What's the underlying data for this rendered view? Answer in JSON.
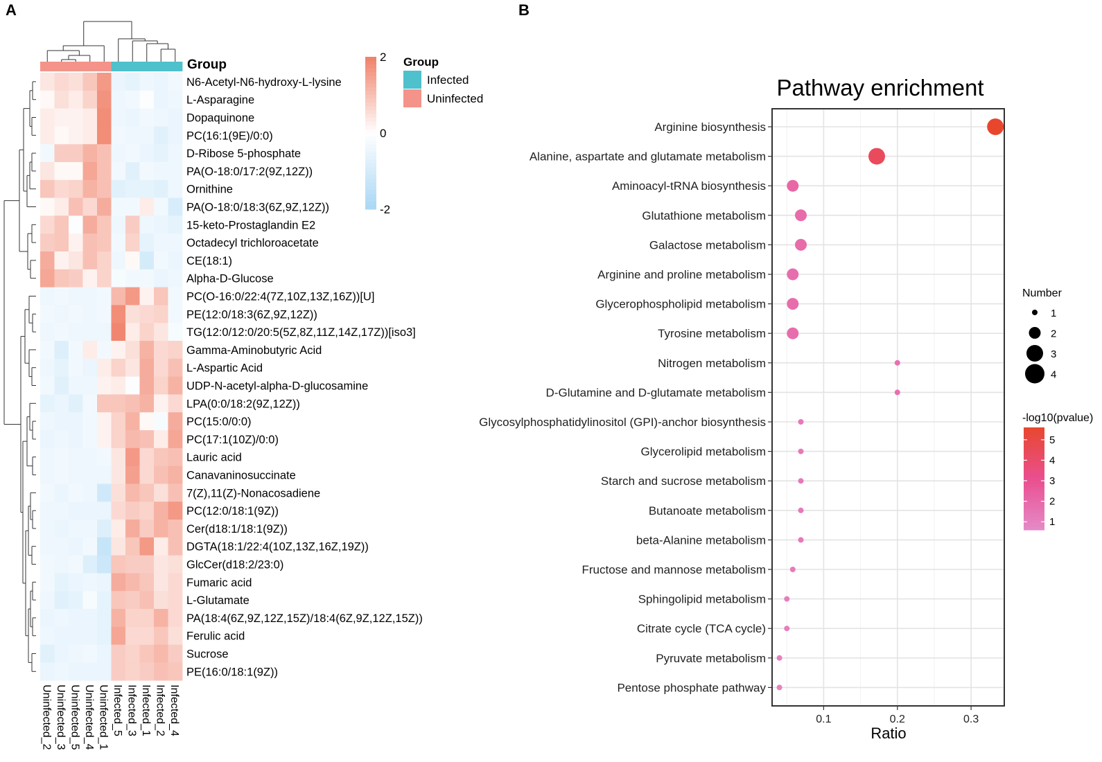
{
  "panels": {
    "a_label": "A",
    "b_label": "B"
  },
  "chart_data": [
    {
      "type": "heatmap",
      "columns": [
        "Uninfected_2",
        "Uninfected_3",
        "Uninfected_5",
        "Uninfected_4",
        "Uninfected_1",
        "Infected_5",
        "Infected_3",
        "Infected_1",
        "Infected_2",
        "Infected_4"
      ],
      "column_groups": [
        "Uninfected",
        "Uninfected",
        "Uninfected",
        "Uninfected",
        "Uninfected",
        "Infected",
        "Infected",
        "Infected",
        "Infected",
        "Infected"
      ],
      "rows": [
        "N6-Acetyl-N6-hydroxy-L-lysine",
        "L-Asparagine",
        "Dopaquinone",
        "PC(16:1(9E)/0:0)",
        "D-Ribose 5-phosphate",
        "PA(O-18:0/17:2(9Z,12Z))",
        "Ornithine",
        "PA(O-18:0/18:3(6Z,9Z,12Z))",
        "15-keto-Prostaglandin E2",
        "Octadecyl trichloroacetate",
        "CE(18:1)",
        "Alpha-D-Glucose",
        "PC(O-16:0/22:4(7Z,10Z,13Z,16Z))[U]",
        "PE(12:0/18:3(6Z,9Z,12Z))",
        "TG(12:0/12:0/20:5(5Z,8Z,11Z,14Z,17Z))[iso3]",
        "Gamma-Aminobutyric Acid",
        "L-Aspartic Acid",
        "UDP-N-acetyl-alpha-D-glucosamine",
        "LPA(0:0/18:2(9Z,12Z))",
        "PC(15:0/0:0)",
        "PC(17:1(10Z)/0:0)",
        "Lauric acid",
        "Canavaninosuccinate",
        "7(Z),11(Z)-Nonacosadiene",
        "PC(12:0/18:1(9Z))",
        "Cer(d18:1/18:1(9Z))",
        "DGTA(18:1/22:4(10Z,13Z,16Z,19Z))",
        "GlcCer(d18:2/23:0)",
        "Fumaric acid",
        "L-Glutamate",
        "PA(18:4(6Z,9Z,12Z,15Z)/18:4(6Z,9Z,12Z,15Z))",
        "Ferulic acid",
        "Sucrose",
        "PE(16:0/18:1(9Z))"
      ],
      "values": [
        [
          0.4,
          0.6,
          0.5,
          0.9,
          1.6,
          -0.5,
          -0.6,
          -0.4,
          -0.5,
          -0.3
        ],
        [
          0.1,
          0.5,
          0.3,
          0.7,
          1.7,
          -0.4,
          -0.3,
          -0.1,
          -0.5,
          -0.4
        ],
        [
          0.3,
          0.2,
          0.2,
          0.3,
          1.8,
          -0.4,
          -0.5,
          -0.3,
          -0.4,
          -0.5
        ],
        [
          0.3,
          0.1,
          0.2,
          0.3,
          1.8,
          -0.3,
          -0.4,
          -0.4,
          -0.7,
          -0.5
        ],
        [
          -0.3,
          0.8,
          0.8,
          1.2,
          1.0,
          -0.4,
          -0.3,
          -0.5,
          -0.6,
          -0.4
        ],
        [
          0.4,
          0.1,
          0.1,
          1.4,
          1.0,
          -0.3,
          -0.7,
          -0.3,
          -0.4,
          -0.4
        ],
        [
          0.9,
          0.6,
          0.7,
          1.2,
          1.0,
          -0.7,
          -0.6,
          -0.6,
          -0.7,
          -0.4
        ],
        [
          0.1,
          0.3,
          1.0,
          0.6,
          1.3,
          -0.3,
          -0.3,
          0.3,
          -0.3,
          -0.9
        ],
        [
          0.6,
          0.9,
          -0.1,
          1.3,
          0.9,
          -0.4,
          0.8,
          -0.4,
          -0.5,
          -0.6
        ],
        [
          0.8,
          0.9,
          0.2,
          1.0,
          0.9,
          -0.3,
          0.7,
          -0.6,
          -0.4,
          -0.4
        ],
        [
          1.3,
          0.2,
          0.4,
          1.0,
          0.7,
          -0.4,
          0.1,
          -1.0,
          -0.3,
          -0.5
        ],
        [
          1.4,
          0.9,
          0.8,
          0.2,
          0.7,
          -0.2,
          -0.3,
          -0.3,
          -0.5,
          -0.4
        ],
        [
          -0.4,
          -0.3,
          -0.4,
          -0.4,
          -0.3,
          1.1,
          1.6,
          0.2,
          0.9,
          -0.3
        ],
        [
          -0.3,
          -0.4,
          -0.3,
          -0.4,
          -0.3,
          1.8,
          0.5,
          0.6,
          0.7,
          -0.3
        ],
        [
          -0.4,
          -0.3,
          -0.4,
          -0.4,
          -0.4,
          1.9,
          0.3,
          0.7,
          0.4,
          -0.2
        ],
        [
          -0.3,
          -0.8,
          -0.3,
          0.3,
          -0.3,
          0.2,
          0.5,
          1.2,
          0.6,
          0.7
        ],
        [
          -0.4,
          -0.6,
          -0.3,
          -0.5,
          0.3,
          0.7,
          0.4,
          1.3,
          0.6,
          1.0
        ],
        [
          -0.3,
          -0.7,
          -0.4,
          -0.4,
          0.2,
          0.3,
          -0.1,
          1.3,
          0.7,
          1.2
        ],
        [
          -0.6,
          -0.5,
          -0.7,
          -0.3,
          0.9,
          0.9,
          1.0,
          1.2,
          0.2,
          0.6
        ],
        [
          -0.4,
          -0.5,
          -0.5,
          -0.3,
          0.2,
          0.7,
          1.2,
          0.1,
          -0.2,
          1.3
        ],
        [
          -0.5,
          -0.4,
          -0.5,
          -0.3,
          0.2,
          0.7,
          1.1,
          1.0,
          0.3,
          1.4
        ],
        [
          -0.4,
          -0.3,
          -0.4,
          -0.4,
          -0.3,
          0.4,
          1.6,
          0.6,
          0.9,
          1.0
        ],
        [
          -0.4,
          -0.3,
          -0.4,
          -0.4,
          -0.4,
          0.4,
          1.5,
          0.6,
          1.0,
          1.2
        ],
        [
          -0.3,
          -0.5,
          -0.3,
          -0.4,
          -1.1,
          0.5,
          1.1,
          0.9,
          0.5,
          1.0
        ],
        [
          -0.4,
          -0.4,
          -0.5,
          -0.5,
          -0.5,
          0.6,
          0.8,
          0.7,
          1.2,
          1.6
        ],
        [
          -0.4,
          -0.5,
          -0.4,
          -0.4,
          -0.8,
          0.3,
          1.3,
          0.8,
          1.2,
          1.0
        ],
        [
          -0.4,
          -0.4,
          -0.5,
          -0.3,
          -1.3,
          0.4,
          0.9,
          1.6,
          0.3,
          1.0
        ],
        [
          -0.3,
          -0.4,
          -0.3,
          -0.8,
          -1.2,
          0.9,
          0.8,
          0.8,
          0.4,
          0.5
        ],
        [
          -0.3,
          -0.6,
          -0.5,
          -0.4,
          -0.5,
          1.3,
          1.1,
          0.9,
          0.4,
          0.6
        ],
        [
          -0.4,
          -0.7,
          -0.6,
          -0.2,
          -0.6,
          0.9,
          0.8,
          1.0,
          0.5,
          0.6
        ],
        [
          -0.5,
          -0.4,
          -0.5,
          -0.5,
          -0.6,
          1.2,
          0.7,
          0.7,
          1.2,
          0.6
        ],
        [
          -0.4,
          -0.5,
          -0.5,
          -0.5,
          -0.6,
          1.4,
          0.6,
          0.6,
          0.9,
          0.5
        ],
        [
          -0.7,
          -0.5,
          -0.4,
          -0.3,
          -0.5,
          0.8,
          0.7,
          0.9,
          1.1,
          0.8
        ],
        [
          -0.5,
          -0.4,
          -0.5,
          -0.5,
          -0.5,
          0.8,
          0.7,
          0.8,
          1.0,
          0.9
        ]
      ],
      "color_scale": {
        "min": -2,
        "mid": 0,
        "max": 2,
        "low_color": "#a9d7f5",
        "mid_color": "#ffffff",
        "high_color": "#f08068"
      },
      "scale_ticks": [
        "2",
        "0",
        "-2"
      ],
      "group_annotation_title": "Group",
      "legend": {
        "title": "Group",
        "entries": [
          {
            "label": "Infected",
            "color": "#4ec1cc"
          },
          {
            "label": "Uninfected",
            "color": "#f4938a"
          }
        ]
      },
      "row_dendrogram": true,
      "column_dendrogram": true
    },
    {
      "type": "scatter",
      "title": "Pathway enrichment",
      "xlabel": "Ratio",
      "xlim": [
        0.03,
        0.345
      ],
      "xticks": [
        0.1,
        0.2,
        0.3
      ],
      "xtick_labels": [
        "0.1",
        "0.2",
        "0.3"
      ],
      "grid": true,
      "categories": [
        "Arginine biosynthesis",
        "Alanine, aspartate and glutamate metabolism",
        "Aminoacyl-tRNA biosynthesis",
        "Glutathione metabolism",
        "Galactose metabolism",
        "Arginine and proline metabolism",
        "Glycerophospholipid metabolism",
        "Tyrosine metabolism",
        "Nitrogen metabolism",
        "D-Glutamine and D-glutamate metabolism",
        "Glycosylphosphatidylinositol (GPI)-anchor biosynthesis",
        "Glycerolipid metabolism",
        "Starch and sucrose metabolism",
        "Butanoate metabolism",
        "beta-Alanine metabolism",
        "Fructose and mannose metabolism",
        "Sphingolipid metabolism",
        "Citrate cycle (TCA cycle)",
        "Pyruvate metabolism",
        "Pentose phosphate pathway"
      ],
      "ratio": [
        0.333,
        0.172,
        0.058,
        0.069,
        0.069,
        0.058,
        0.058,
        0.058,
        0.2,
        0.2,
        0.069,
        0.069,
        0.069,
        0.069,
        0.069,
        0.058,
        0.05,
        0.05,
        0.04,
        0.04
      ],
      "number": [
        3,
        3,
        2,
        2,
        2,
        2,
        2,
        2,
        1,
        1,
        1,
        1,
        1,
        1,
        1,
        1,
        1,
        1,
        1,
        1
      ],
      "neg_log10_pvalue": [
        5.6,
        4.4,
        2.1,
        1.9,
        1.9,
        1.8,
        1.8,
        1.8,
        1.7,
        1.7,
        1.3,
        1.3,
        1.3,
        1.3,
        1.3,
        1.2,
        1.1,
        1.1,
        1.0,
        1.0
      ],
      "size_legend": {
        "title": "Number",
        "values": [
          1,
          2,
          3,
          4
        ],
        "labels": [
          "1",
          "2",
          "3",
          "4"
        ]
      },
      "color_legend": {
        "title": "-log10(pvalue)",
        "min": 0.6,
        "max": 5.6,
        "ticks": [
          5,
          4,
          3,
          2,
          1
        ],
        "tick_labels": [
          "5",
          "4",
          "3",
          "2",
          "1"
        ],
        "low_color": "#e58ac8",
        "mid_color": "#ea4f8f",
        "high_color": "#e8472e"
      }
    }
  ]
}
